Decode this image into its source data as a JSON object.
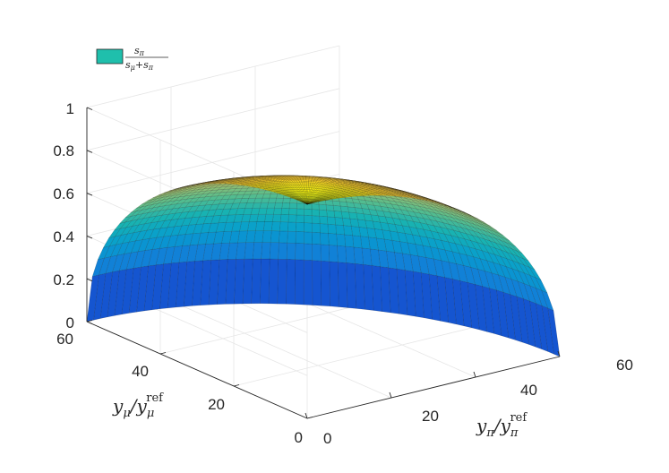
{
  "chart_data": {
    "type": "surface3d",
    "title": "",
    "legend": {
      "placement": "top-left",
      "entries": [
        {
          "numerator": "s",
          "numerator_sub": "π",
          "denominator_a": "s",
          "denominator_a_sub": "μ",
          "denominator_plus": "+",
          "denominator_b": "s",
          "denominator_b_sub": "π",
          "color": "#1fbfac"
        }
      ]
    },
    "xaxis": {
      "label": "y",
      "label_sub": "π",
      "label_slash": "/y",
      "label_sub2": "π",
      "label_sup2": "ref",
      "ticks": [
        "0",
        "20",
        "40",
        "60"
      ],
      "range": [
        0,
        60
      ]
    },
    "yaxis": {
      "label": "y",
      "label_sub": "μ",
      "label_slash": "/y",
      "label_sub2": "μ",
      "label_sup2": "ref",
      "ticks": [
        "0",
        "20",
        "40",
        "60"
      ],
      "range": [
        0,
        60
      ]
    },
    "zaxis": {
      "ticks": [
        "0",
        "0.2",
        "0.4",
        "0.6",
        "0.8",
        "1"
      ],
      "range": [
        0,
        1
      ]
    },
    "grid": true,
    "colormap": "parula",
    "surface": {
      "description": "quarter-dome surface over the disk region of radius 60",
      "radius": 60,
      "z_at_origin": 1,
      "z_at_rim": 0
    }
  }
}
